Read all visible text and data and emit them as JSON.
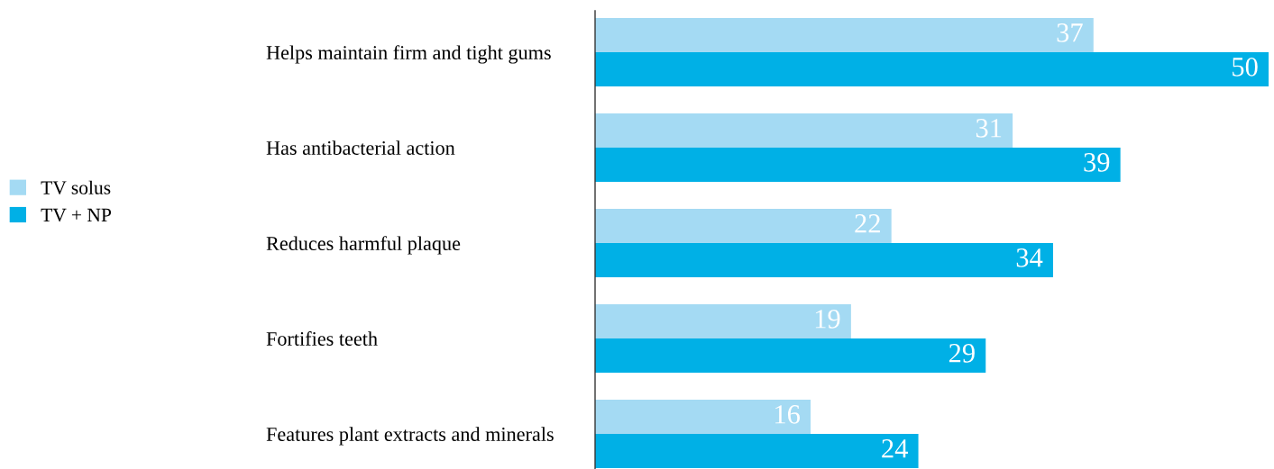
{
  "chart_data": {
    "type": "bar",
    "orientation": "horizontal",
    "categories": [
      "Helps maintain firm and tight gums",
      "Has antibacterial action",
      "Reduces harmful plaque",
      "Fortifies teeth",
      "Features plant extracts and minerals"
    ],
    "series": [
      {
        "name": "TV solus",
        "color": "#a4daf3",
        "values": [
          37,
          31,
          22,
          19,
          16
        ]
      },
      {
        "name": "TV + NP",
        "color": "#00b0e6",
        "values": [
          50,
          39,
          34,
          29,
          24
        ]
      }
    ],
    "data_labels": true,
    "legend": "left",
    "grid": false,
    "tick_labels": "y"
  }
}
